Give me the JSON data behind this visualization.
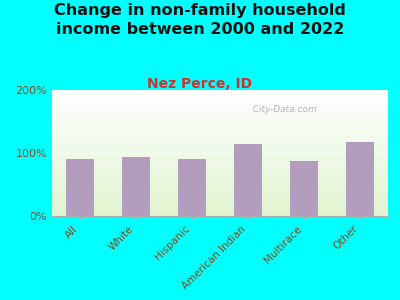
{
  "title": "Change in non-family household\nincome between 2000 and 2022",
  "subtitle": "Nez Perce, ID",
  "categories": [
    "All",
    "White",
    "Hispanic",
    "American Indian",
    "Multirace",
    "Other"
  ],
  "values": [
    90,
    93,
    90,
    115,
    88,
    117
  ],
  "bar_color": "#b39dbd",
  "title_fontsize": 11.5,
  "subtitle_fontsize": 10,
  "subtitle_color": "#cc3333",
  "title_color": "#111111",
  "tick_label_color": "#8B4513",
  "background_outer": "#00FFFF",
  "background_inner": "#eef5e4",
  "ylim": [
    0,
    200
  ],
  "yticks": [
    0,
    100,
    200
  ],
  "ytick_labels": [
    "0%",
    "100%",
    "200%"
  ],
  "watermark": "  City-Data.com"
}
